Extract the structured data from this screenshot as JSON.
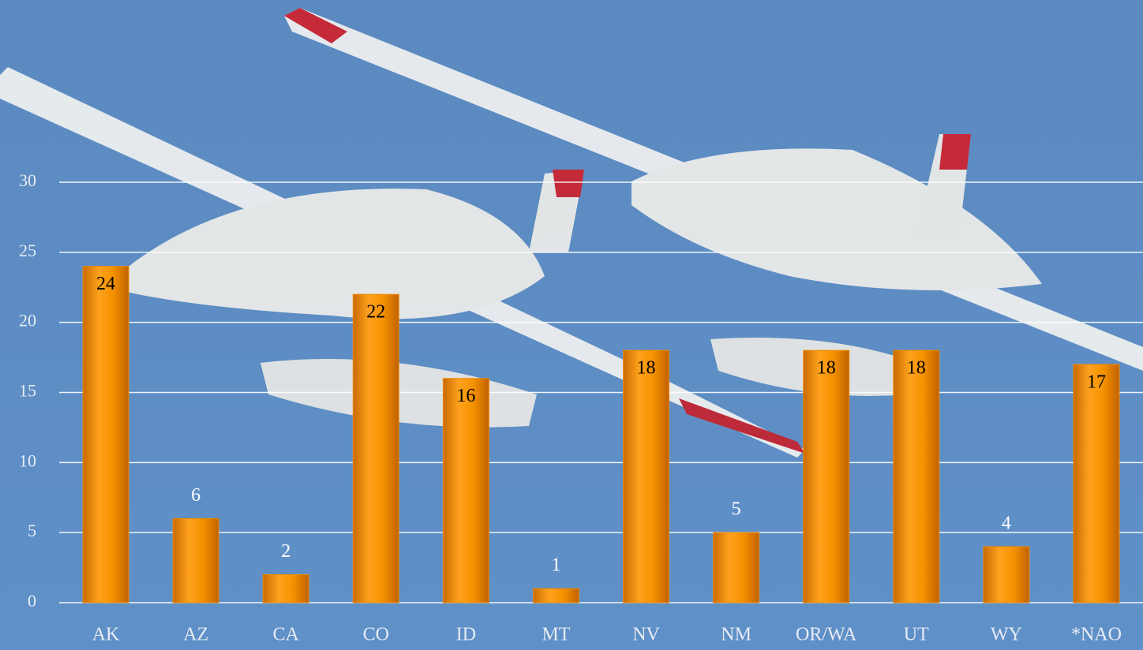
{
  "chart_data": {
    "type": "bar",
    "categories": [
      "AK",
      "AZ",
      "CA",
      "CO",
      "ID",
      "MT",
      "NV",
      "NM",
      "OR/WA",
      "UT",
      "WY",
      "*NAO"
    ],
    "values": [
      24,
      6,
      2,
      22,
      16,
      1,
      18,
      5,
      18,
      18,
      4,
      17
    ],
    "color": "#f08a00",
    "ylim": [
      0,
      30
    ],
    "yticks": [
      0,
      5,
      10,
      15,
      20,
      25,
      30
    ],
    "grid": true
  }
}
